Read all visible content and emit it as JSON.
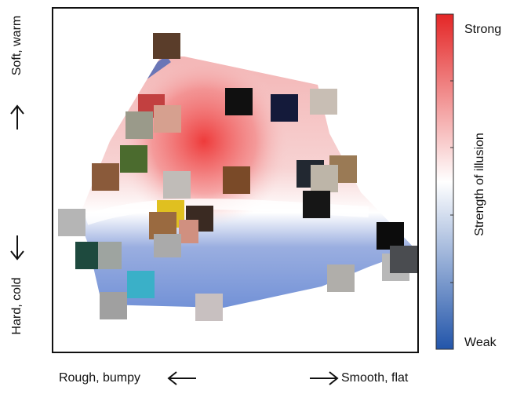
{
  "axes": {
    "top": "Soft, warm",
    "bottom": "Hard, cold",
    "left": "Rough, bumpy",
    "right": "Smooth, flat"
  },
  "colorbar": {
    "title": "Strength of illusion",
    "high_label": "Strong",
    "low_label": "Weak"
  }
}
